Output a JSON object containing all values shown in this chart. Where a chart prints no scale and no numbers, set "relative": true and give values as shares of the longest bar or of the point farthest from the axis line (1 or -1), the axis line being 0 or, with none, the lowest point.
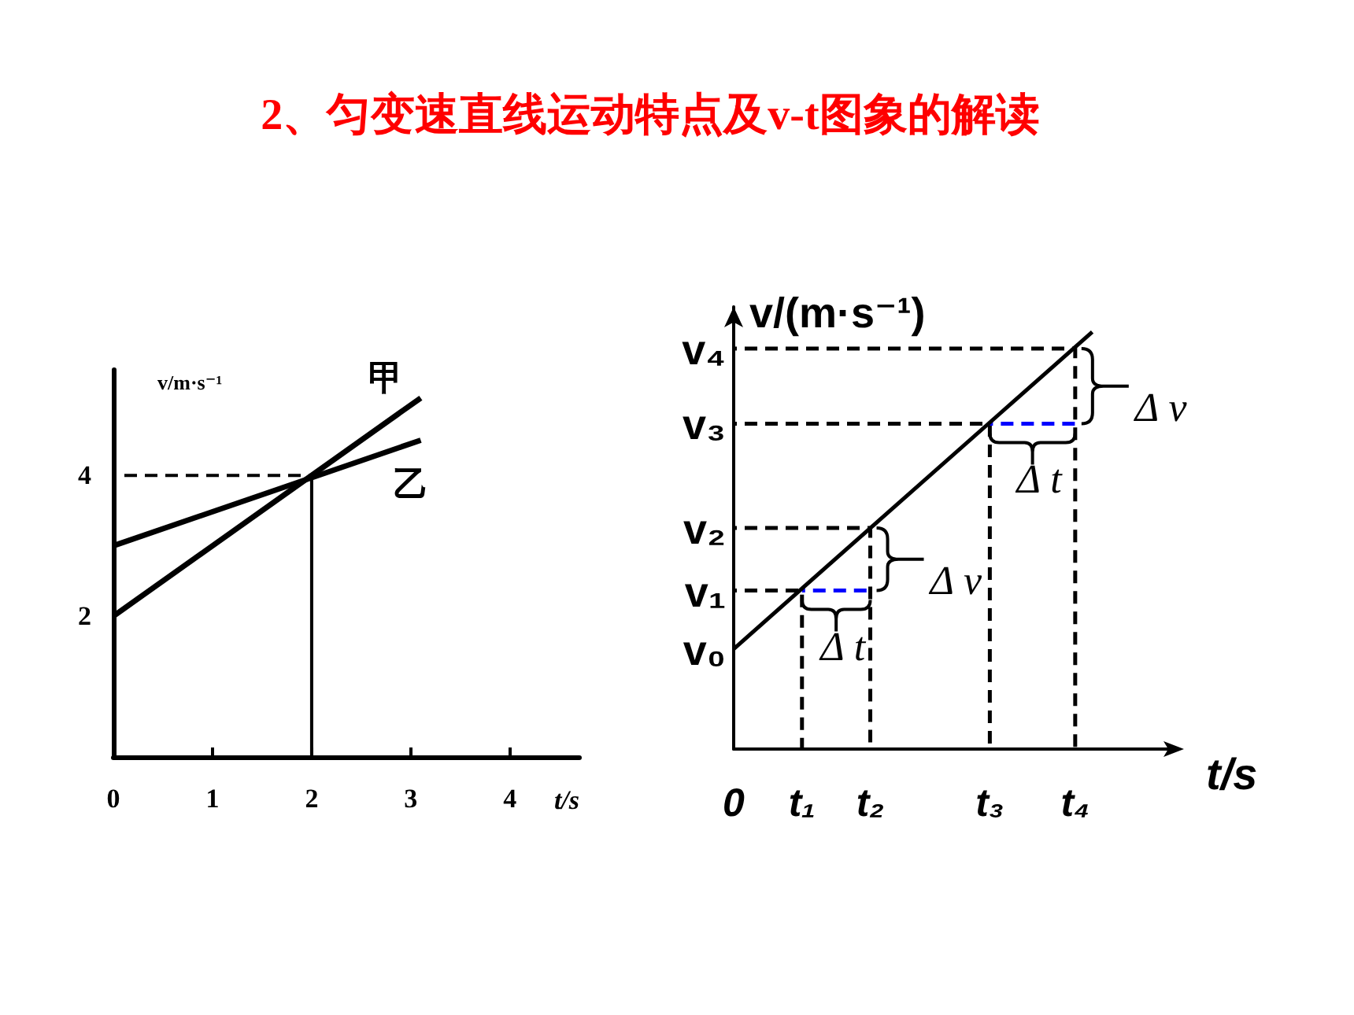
{
  "chart_data": [
    {
      "type": "line",
      "title": "2、匀变速直线运动特点及v-t图象的解读",
      "xlabel": "t/s",
      "ylabel": "v/m·s⁻¹",
      "xlim": [
        0,
        4.7
      ],
      "ylim": [
        0,
        5.5
      ],
      "xticks": [
        0,
        1,
        2,
        3,
        4
      ],
      "yticks": [
        2,
        4
      ],
      "marker": "none",
      "series": [
        {
          "name": "甲",
          "color": "#000000",
          "x": [
            0,
            3.1
          ],
          "values": [
            2,
            5.1
          ]
        },
        {
          "name": "乙",
          "color": "#000000",
          "x": [
            0,
            3.1
          ],
          "values": [
            3,
            4.5
          ]
        },
        {
          "color": "#000000",
          "x": [
            0,
            2
          ],
          "values": [
            4,
            4
          ],
          "line_style": "dashed"
        },
        {
          "color": "#000000",
          "x": [
            2,
            2
          ],
          "values": [
            0,
            4
          ]
        }
      ]
    },
    {
      "type": "line",
      "xlabel": "t/s",
      "ylabel": "v/(m·s⁻¹)",
      "relative": true,
      "marker": "none",
      "categories": [
        "0",
        null,
        null,
        null,
        "t₁",
        null,
        null,
        null,
        "t₂",
        null,
        null,
        null,
        null,
        null,
        null,
        "t₃",
        null,
        null,
        null,
        null,
        "t₄",
        null,
        null,
        null,
        null,
        null,
        null
      ],
      "series": [
        {
          "color": "#000000",
          "values": [
            0.24,
            null,
            null,
            null,
            null,
            null,
            null,
            null,
            null,
            null,
            null,
            null,
            null,
            null,
            null,
            null,
            null,
            null,
            null,
            null,
            null,
            1,
            null,
            null,
            null,
            null,
            null
          ]
        },
        {
          "color": "#000000",
          "x": [
            "0",
            "t₁",
            "t₁"
          ],
          "values": [
            0.38,
            0.38,
            0
          ],
          "line_style": "dashed"
        },
        {
          "color": "#000000",
          "x": [
            "0",
            "t₂",
            "t₂"
          ],
          "values": [
            0.53,
            0.53,
            0
          ],
          "line_style": "dashed"
        },
        {
          "color": "#000000",
          "x": [
            "0",
            "t₃",
            "t₃"
          ],
          "values": [
            0.78,
            0.78,
            0
          ],
          "line_style": "dashed"
        },
        {
          "color": "#000000",
          "x": [
            "0",
            "t₄",
            "t₄"
          ],
          "values": [
            0.96,
            0.96,
            0
          ],
          "line_style": "dashed"
        },
        {
          "color": "#0000ff",
          "x": [
            "t₁",
            "t₂"
          ],
          "values": [
            0.38,
            0.38
          ],
          "line_style": "dashed"
        },
        {
          "color": "#0000ff",
          "x": [
            "t₃",
            "t₄"
          ],
          "values": [
            0.78,
            0.78
          ],
          "line_style": "dashed"
        }
      ],
      "annotations": [
        {
          "text": "v₀",
          "x": "0",
          "y": 0.24
        },
        {
          "text": "v₁",
          "x": "0",
          "y": 0.38
        },
        {
          "text": "v₂",
          "x": "0",
          "y": 0.53
        },
        {
          "text": "v₃",
          "x": "0",
          "y": 0.78
        },
        {
          "text": "v₄",
          "x": "0",
          "y": 0.96
        },
        {
          "text": "Δ v",
          "x": "t₂",
          "y": 0.53
        },
        {
          "text": "Δ t",
          "x": "t₁",
          "y": 0.38
        },
        {
          "text": "Δ v",
          "x": "t₄",
          "y": 0.96
        },
        {
          "text": "Δ t",
          "x": "t₃",
          "y": 0.78
        }
      ]
    }
  ]
}
